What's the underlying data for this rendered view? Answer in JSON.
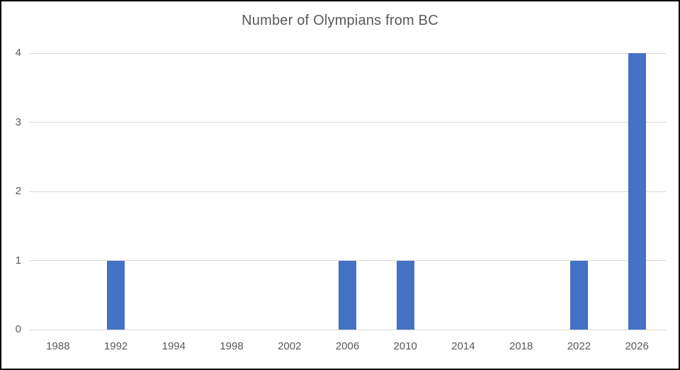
{
  "window": {
    "background": "#ffffff",
    "border_color": "#000000"
  },
  "chart_data": {
    "type": "bar",
    "title": "Number of Olympians from BC",
    "categories": [
      "1988",
      "1992",
      "1994",
      "1998",
      "2002",
      "2006",
      "2010",
      "2014",
      "2018",
      "2022",
      "2026"
    ],
    "values": [
      0,
      1,
      0,
      0,
      0,
      1,
      1,
      0,
      0,
      1,
      4
    ],
    "xlabel": "",
    "ylabel": "",
    "ylim": [
      0,
      4
    ],
    "yticks": [
      0,
      1,
      2,
      3,
      4
    ],
    "grid": true,
    "legend": false,
    "bar_color": "#4472C4",
    "gridline_color": "#D9D9D9",
    "text_color": "#595959",
    "title_color": "#595959"
  }
}
